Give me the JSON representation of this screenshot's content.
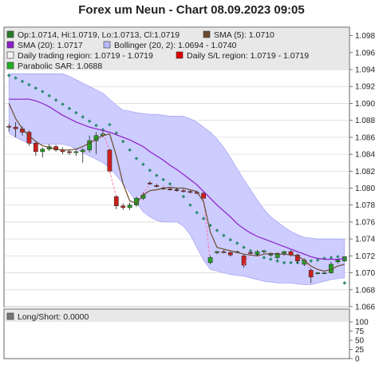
{
  "title": "Forex um Neun - Chart 08.09.2023 09:05",
  "legend": [
    {
      "text": "Op:1.0714, Hi:1.0719, Lo:1.0713, Cl:1.0719",
      "color": "#2a7a2a"
    },
    {
      "text": "SMA (5): 1.0710",
      "color": "#6b4a2f"
    },
    {
      "text": "SMA (20): 1.0717",
      "color": "#8c1ec8"
    },
    {
      "text": "Bollinger (20, 2): 1.0694 - 1.0740",
      "color": "#b8b8ff"
    },
    {
      "text": "Daily trading region: 1.0719 - 1.0719",
      "color": "#f4f4f4"
    },
    {
      "text": "Daily S/L region: 1.0719 - 1.0719",
      "color": "#e00000"
    },
    {
      "text": "Parabolic SAR: 1.0688",
      "color": "#22b022"
    }
  ],
  "lower_legend": {
    "text": "Long/Short: 0.0000",
    "color": "#777777"
  },
  "colors": {
    "bull": "#22a022",
    "bear": "#cc1f1f",
    "sma5": "#6b4a2f",
    "sma20": "#8c1ec8",
    "band": "#ccccff",
    "sar": "#2e8b74",
    "sar_bear": "#ff77aa"
  },
  "chart_data": [
    {
      "type": "candlestick",
      "title": "Forex um Neun - Chart 08.09.2023 09:05",
      "ylim": [
        1.066,
        1.099
      ],
      "y_ticks": [
        "1.066",
        "1.068",
        "1.070",
        "1.072",
        "1.074",
        "1.076",
        "1.078",
        "1.080",
        "1.082",
        "1.084",
        "1.086",
        "1.088",
        "1.090",
        "1.092",
        "1.094",
        "1.096",
        "1.098"
      ],
      "candles": [
        [
          1.0873,
          1.0876,
          1.0867,
          1.0872
        ],
        [
          1.0872,
          1.0878,
          1.086,
          1.087
        ],
        [
          1.087,
          1.0873,
          1.0862,
          1.0866
        ],
        [
          1.0866,
          1.0868,
          1.085,
          1.0853
        ],
        [
          1.0853,
          1.0856,
          1.0838,
          1.0843
        ],
        [
          1.0843,
          1.0848,
          1.0836,
          1.0846
        ],
        [
          1.0846,
          1.0852,
          1.0844,
          1.0849
        ],
        [
          1.0849,
          1.0851,
          1.0843,
          1.0845
        ],
        [
          1.0845,
          1.0848,
          1.084,
          1.0843
        ],
        [
          1.0843,
          1.0846,
          1.0839,
          1.0842
        ],
        [
          1.0842,
          1.0846,
          1.0838,
          1.0843
        ],
        [
          1.0843,
          1.0847,
          1.083,
          1.0845
        ],
        [
          1.0845,
          1.0862,
          1.0842,
          1.0856
        ],
        [
          1.0856,
          1.0866,
          1.084,
          1.0862
        ],
        [
          1.0862,
          1.0867,
          1.086,
          1.0864
        ],
        [
          1.0845,
          1.0846,
          1.0818,
          1.082
        ],
        [
          1.079,
          1.0791,
          1.0775,
          1.0779
        ],
        [
          1.0779,
          1.0782,
          1.0774,
          1.0777
        ],
        [
          1.0777,
          1.0783,
          1.0774,
          1.078
        ],
        [
          1.078,
          1.079,
          1.0778,
          1.0788
        ],
        [
          1.0788,
          1.0795,
          1.0786,
          1.0792
        ],
        [
          1.0806,
          1.0808,
          1.0804,
          1.0805
        ],
        [
          1.0803,
          1.0805,
          1.0801,
          1.0802
        ],
        [
          1.08,
          1.0802,
          1.0798,
          1.0799
        ],
        [
          1.0799,
          1.0801,
          1.0797,
          1.0798
        ],
        [
          1.0798,
          1.08,
          1.0796,
          1.0797
        ],
        [
          1.0797,
          1.0799,
          1.0795,
          1.0796
        ],
        [
          1.0796,
          1.0798,
          1.0794,
          1.0795
        ],
        [
          1.0795,
          1.0797,
          1.0793,
          1.0794
        ],
        [
          1.0794,
          1.0795,
          1.0786,
          1.0788
        ],
        [
          1.0712,
          1.072,
          1.071,
          1.0718
        ],
        [
          1.0724,
          1.0726,
          1.0722,
          1.0725
        ],
        [
          1.0725,
          1.0727,
          1.0723,
          1.0724
        ],
        [
          1.0724,
          1.0725,
          1.0719,
          1.0721
        ],
        [
          1.0724,
          1.0726,
          1.0723,
          1.0725
        ],
        [
          1.072,
          1.0722,
          1.0706,
          1.0709
        ],
        [
          1.0724,
          1.0725,
          1.0722,
          1.0723
        ],
        [
          1.0722,
          1.0727,
          1.072,
          1.0725
        ],
        [
          1.0725,
          1.0727,
          1.0723,
          1.0726
        ],
        [
          1.0721,
          1.0724,
          1.0719,
          1.0722
        ],
        [
          1.0718,
          1.0724,
          1.0716,
          1.0723
        ],
        [
          1.0723,
          1.0726,
          1.072,
          1.0725
        ],
        [
          1.0725,
          1.0727,
          1.0719,
          1.0721
        ],
        [
          1.0721,
          1.0723,
          1.0711,
          1.0714
        ],
        [
          1.071,
          1.0717,
          1.0708,
          1.0715
        ],
        [
          1.0703,
          1.0705,
          1.0688,
          1.0695
        ],
        [
          1.07,
          1.0701,
          1.0698,
          1.07
        ],
        [
          1.07,
          1.0701,
          1.0699,
          1.07
        ],
        [
          1.07,
          1.0713,
          1.0699,
          1.071
        ],
        [
          1.0713,
          1.0716,
          1.0711,
          1.0715
        ],
        [
          1.0714,
          1.0719,
          1.0713,
          1.0719
        ]
      ],
      "sma5": [
        1.09,
        1.0882,
        1.087,
        1.0862,
        1.0855,
        1.085,
        1.0848,
        1.0846,
        1.0845,
        1.0845,
        1.0846,
        1.0849,
        1.0853,
        1.0858,
        1.0862,
        1.0864,
        1.0838,
        1.0805,
        1.0785,
        1.0782,
        1.0792,
        1.0797,
        1.0798,
        1.08,
        1.0801,
        1.08,
        1.08,
        1.0798,
        1.0796,
        1.0784,
        1.0748,
        1.073,
        1.0728,
        1.0726,
        1.0724,
        1.0722,
        1.0721,
        1.072,
        1.0722,
        1.0723,
        1.0722,
        1.0722,
        1.0721,
        1.072,
        1.0715,
        1.0708,
        1.0704,
        1.0702,
        1.0704,
        1.0708,
        1.071
      ],
      "sma20": [
        1.0905,
        1.0905,
        1.0905,
        1.0905,
        1.0903,
        1.09,
        1.0896,
        1.0891,
        1.0886,
        1.0882,
        1.0878,
        1.0875,
        1.0872,
        1.087,
        1.0868,
        1.0866,
        1.0863,
        1.086,
        1.0857,
        1.0853,
        1.0849,
        1.0843,
        1.0838,
        1.0833,
        1.0827,
        1.0822,
        1.0816,
        1.081,
        1.0804,
        1.0796,
        1.0788,
        1.078,
        1.0773,
        1.0766,
        1.0758,
        1.0752,
        1.0747,
        1.0743,
        1.074,
        1.0737,
        1.0734,
        1.0731,
        1.0728,
        1.0725,
        1.0722,
        1.0719,
        1.0717,
        1.0716,
        1.0716,
        1.0716,
        1.0717
      ],
      "bb_upper": [
        1.0935,
        1.0935,
        1.0935,
        1.0935,
        1.0935,
        1.0935,
        1.0935,
        1.0935,
        1.0935,
        1.0932,
        1.0928,
        1.0924,
        1.092,
        1.0916,
        1.0912,
        1.0905,
        1.0898,
        1.0892,
        1.0891,
        1.0889,
        1.0888,
        1.0887,
        1.0887,
        1.0886,
        1.0885,
        1.0885,
        1.0885,
        1.0882,
        1.0878,
        1.0872,
        1.0866,
        1.0858,
        1.0848,
        1.0836,
        1.0823,
        1.081,
        1.0798,
        1.0786,
        1.0775,
        1.0766,
        1.076,
        1.0754,
        1.0749,
        1.0745,
        1.0742,
        1.0741,
        1.074,
        1.074,
        1.074,
        1.074,
        1.074
      ],
      "bb_lower": [
        1.0865,
        1.086,
        1.0856,
        1.0853,
        1.0852,
        1.0852,
        1.0852,
        1.0852,
        1.0852,
        1.085,
        1.0846,
        1.0842,
        1.0838,
        1.0834,
        1.083,
        1.0824,
        1.0815,
        1.0805,
        1.0795,
        1.0783,
        1.0772,
        1.0766,
        1.0762,
        1.076,
        1.076,
        1.076,
        1.0755,
        1.0745,
        1.073,
        1.0715,
        1.0704,
        1.0702,
        1.07,
        1.0698,
        1.0697,
        1.0696,
        1.0694,
        1.0692,
        1.069,
        1.0689,
        1.0688,
        1.0688,
        1.0688,
        1.0687,
        1.0686,
        1.0686,
        1.0688,
        1.069,
        1.0692,
        1.0693,
        1.0694
      ],
      "sar": [
        1.0933,
        1.093,
        1.0926,
        1.0922,
        1.0918,
        1.0914,
        1.0909,
        1.0904,
        1.0899,
        1.0894,
        1.0889,
        1.0884,
        1.0879,
        1.0874,
        1.0869,
        1.0875,
        1.0865,
        1.0855,
        1.0845,
        1.0835,
        1.0828,
        1.0821,
        1.0815,
        1.081,
        1.0805,
        1.0798,
        1.079,
        1.078,
        1.0771,
        1.0764,
        1.0756,
        1.075,
        1.0744,
        1.0739,
        1.0735,
        1.073,
        1.0726,
        1.0722,
        1.0718,
        1.0716,
        1.0714,
        1.0712,
        1.0712,
        1.0712,
        1.0713,
        1.0714,
        1.0715,
        1.0717,
        1.0718,
        1.0719,
        1.0688
      ],
      "lower_panel": {
        "title": "Long/Short: 0.0000",
        "y_ticks": [
          "0",
          "25",
          "50",
          "75",
          "100"
        ],
        "ylim": [
          0,
          100
        ]
      }
    }
  ]
}
